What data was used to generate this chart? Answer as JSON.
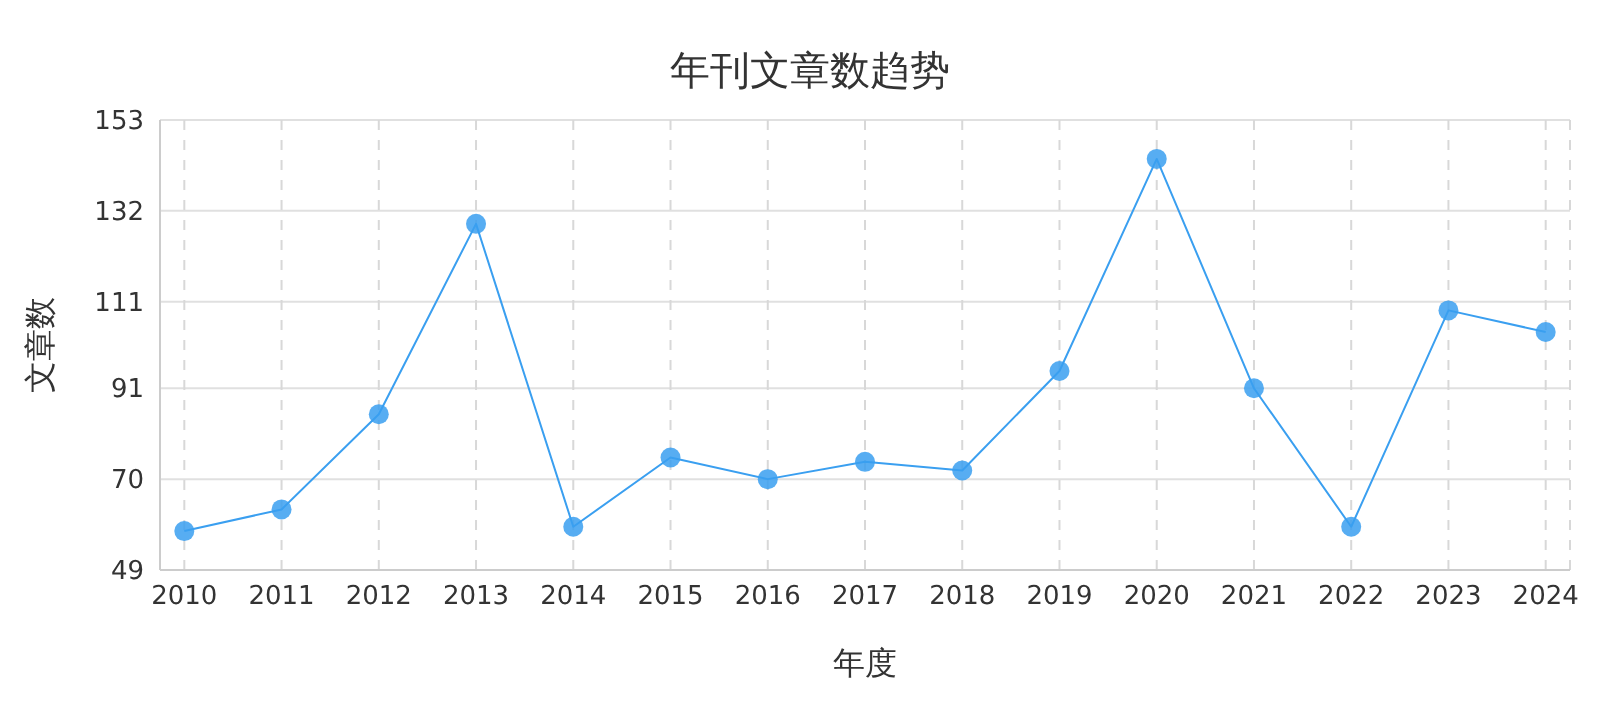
{
  "chart_data": {
    "type": "line",
    "title": "年刊文章数趋势",
    "xlabel": "年度",
    "ylabel": "文章数",
    "categories": [
      "2010",
      "2011",
      "2012",
      "2013",
      "2014",
      "2015",
      "2016",
      "2017",
      "2018",
      "2019",
      "2020",
      "2021",
      "2022",
      "2023",
      "2024"
    ],
    "series": [
      {
        "color": "#3a9ff0",
        "values": [
          58,
          63,
          85,
          129,
          59,
          75,
          70,
          74,
          72,
          95,
          144,
          91,
          59,
          109,
          104
        ]
      }
    ],
    "ylim": [
      49,
      153
    ],
    "yticks": [
      49,
      70,
      91,
      111,
      132,
      153
    ],
    "grid": true,
    "marker": "circle",
    "line_style": "solid",
    "legend": false
  }
}
